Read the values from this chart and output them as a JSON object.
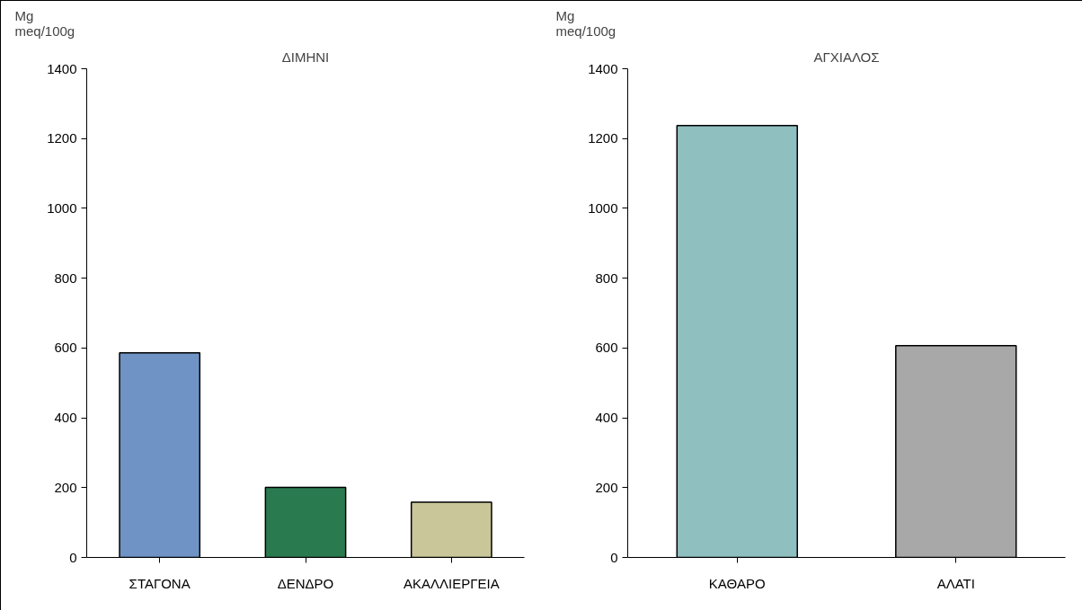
{
  "chart_data": [
    {
      "type": "bar",
      "title": "ΔΙΜΗΝΙ",
      "ylabel": "Mg\nmeq/100g",
      "categories": [
        "ΣΤΑΓΟΝΑ",
        "ΔΕΝΔΡΟ",
        "ΑΚΑΛΛΙΕΡΓΕΙΑ"
      ],
      "values": [
        586,
        201,
        158
      ],
      "colors": [
        "#6f93c4",
        "#2a7a50",
        "#c9c79a"
      ],
      "ylim": [
        0,
        1400
      ],
      "yticks": [
        0,
        200,
        400,
        600,
        800,
        1000,
        1200,
        1400
      ]
    },
    {
      "type": "bar",
      "title": "ΑΓΧΙΑΛΟΣ",
      "ylabel": "Mg\nmeq/100g",
      "categories": [
        "ΚΑΘΑΡΟ",
        "ΑΛΑΤΙ"
      ],
      "values": [
        1237,
        607
      ],
      "colors": [
        "#8fbfbf",
        "#a8a8a8"
      ],
      "ylim": [
        0,
        1400
      ],
      "yticks": [
        0,
        200,
        400,
        600,
        800,
        1000,
        1200,
        1400
      ]
    }
  ]
}
